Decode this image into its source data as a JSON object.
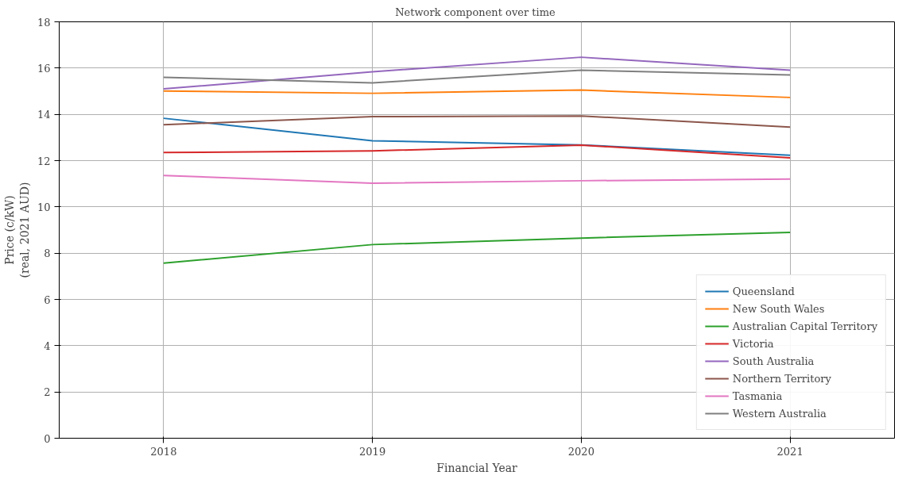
{
  "chart_data": {
    "type": "line",
    "title": "Network  component over time",
    "xlabel": "Financial Year",
    "ylabel": "Price (c/kW)\n(real, 2021 AUD)",
    "x": [
      2018,
      2019,
      2020,
      2021
    ],
    "xlim": [
      2017.5,
      2021.5
    ],
    "xticks": [
      2018,
      2019,
      2020,
      2021
    ],
    "ylim": [
      0,
      18
    ],
    "yticks": [
      0,
      2,
      4,
      6,
      8,
      10,
      12,
      14,
      16,
      18
    ],
    "grid": true,
    "legend": "bottom right",
    "marker": "none",
    "line_style": "solid",
    "series": [
      {
        "name": "Queensland",
        "color": "#1f77b4",
        "values": [
          13.83,
          12.86,
          12.68,
          12.23
        ]
      },
      {
        "name": "New South Wales",
        "color": "#ff7f0e",
        "values": [
          15.01,
          14.91,
          15.05,
          14.73
        ]
      },
      {
        "name": "Australian Capital Territory",
        "color": "#2ca02c",
        "values": [
          7.57,
          8.37,
          8.65,
          8.9
        ]
      },
      {
        "name": "Victoria",
        "color": "#d62728",
        "values": [
          12.35,
          12.42,
          12.67,
          12.12
        ]
      },
      {
        "name": "South Australia",
        "color": "#9467bd",
        "values": [
          15.1,
          15.84,
          16.47,
          15.91
        ]
      },
      {
        "name": "Northern Territory",
        "color": "#8c564b",
        "values": [
          13.55,
          13.9,
          13.93,
          13.45
        ]
      },
      {
        "name": "Tasmania",
        "color": "#e377c2",
        "values": [
          11.36,
          11.02,
          11.13,
          11.2
        ]
      },
      {
        "name": "Western Australia",
        "color": "#7f7f7f",
        "values": [
          15.6,
          15.36,
          15.91,
          15.7
        ]
      }
    ]
  }
}
